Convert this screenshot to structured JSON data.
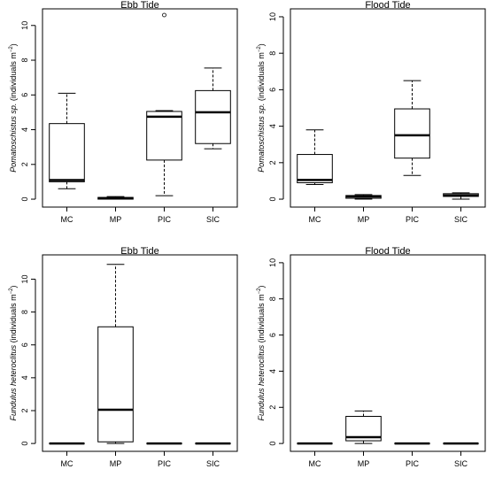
{
  "chart_data": [
    {
      "type": "boxplot",
      "title": "Ebb Tide",
      "ylabel": "Pomatoschistus sp. (individuals m⁻²)",
      "ylabel_italic": "Pomatoschistus sp.",
      "ylabel_rest": " (individuals m",
      "ylabel_exp": "−2",
      "ylabel_close": ")",
      "categories": [
        "MC",
        "MP",
        "PIC",
        "SIC"
      ],
      "ylim": [
        0,
        10.5
      ],
      "yticks": [
        "0",
        "2",
        "4",
        "6",
        "8",
        "10"
      ],
      "boxes": [
        {
          "min": 0.6,
          "q1": 1.0,
          "median": 1.1,
          "q3": 4.35,
          "max": 6.1,
          "outliers": []
        },
        {
          "min": 0.0,
          "q1": 0.0,
          "median": 0.05,
          "q3": 0.1,
          "max": 0.15,
          "outliers": []
        },
        {
          "min": 0.2,
          "q1": 2.25,
          "median": 4.75,
          "q3": 5.05,
          "max": 5.1,
          "outliers": [
            10.6
          ]
        },
        {
          "min": 2.9,
          "q1": 3.2,
          "median": 5.0,
          "q3": 6.25,
          "max": 7.55,
          "outliers": []
        }
      ]
    },
    {
      "type": "boxplot",
      "title": "Flood Tide",
      "ylabel": "Pomatoschistus sp. (individuals m⁻²)",
      "ylabel_italic": "Pomatoschistus sp.",
      "ylabel_rest": " (individuals m",
      "ylabel_exp": "−2",
      "ylabel_close": ")",
      "categories": [
        "MC",
        "MP",
        "PIC",
        "SIC"
      ],
      "ylim": [
        0,
        10
      ],
      "yticks": [
        "0",
        "2",
        "4",
        "6",
        "8",
        "10"
      ],
      "boxes": [
        {
          "min": 0.8,
          "q1": 0.9,
          "median": 1.05,
          "q3": 2.45,
          "max": 3.8,
          "outliers": []
        },
        {
          "min": 0.0,
          "q1": 0.05,
          "median": 0.15,
          "q3": 0.2,
          "max": 0.25,
          "outliers": []
        },
        {
          "min": 1.3,
          "q1": 2.25,
          "median": 3.5,
          "q3": 4.95,
          "max": 6.5,
          "outliers": []
        },
        {
          "min": 0.0,
          "q1": 0.15,
          "median": 0.2,
          "q3": 0.3,
          "max": 0.35,
          "outliers": []
        }
      ]
    },
    {
      "type": "boxplot",
      "title": "Ebb Tide",
      "ylabel": "Fundulus heteroclitus (individuals m⁻²)",
      "ylabel_italic": "Fundulus heteroclitus",
      "ylabel_rest": " (individuals m",
      "ylabel_exp": "−2",
      "ylabel_close": ")",
      "categories": [
        "MC",
        "MP",
        "PIC",
        "SIC"
      ],
      "ylim": [
        0,
        11
      ],
      "yticks": [
        "0",
        "2",
        "4",
        "6",
        "8",
        "10"
      ],
      "boxes": [
        {
          "min": 0,
          "q1": 0,
          "median": 0,
          "q3": 0,
          "max": 0,
          "outliers": []
        },
        {
          "min": 0.0,
          "q1": 0.1,
          "median": 2.05,
          "q3": 7.1,
          "max": 10.9,
          "outliers": []
        },
        {
          "min": 0,
          "q1": 0,
          "median": 0,
          "q3": 0,
          "max": 0,
          "outliers": []
        },
        {
          "min": 0,
          "q1": 0,
          "median": 0,
          "q3": 0,
          "max": 0,
          "outliers": []
        }
      ]
    },
    {
      "type": "boxplot",
      "title": "Flood Tide",
      "ylabel": "Fundulus heteroclitus (individuals m⁻²)",
      "ylabel_italic": "Fundulus heteroclitus",
      "ylabel_rest": " (individuals m",
      "ylabel_exp": "−2",
      "ylabel_close": ")",
      "categories": [
        "MC",
        "MP",
        "PIC",
        "SIC"
      ],
      "ylim": [
        0,
        10
      ],
      "yticks": [
        "0",
        "2",
        "4",
        "6",
        "8",
        "10"
      ],
      "boxes": [
        {
          "min": 0,
          "q1": 0,
          "median": 0,
          "q3": 0,
          "max": 0,
          "outliers": []
        },
        {
          "min": 0.0,
          "q1": 0.15,
          "median": 0.35,
          "q3": 1.5,
          "max": 1.8,
          "outliers": []
        },
        {
          "min": 0,
          "q1": 0,
          "median": 0,
          "q3": 0,
          "max": 0,
          "outliers": []
        },
        {
          "min": 0,
          "q1": 0,
          "median": 0,
          "q3": 0,
          "max": 0,
          "outliers": []
        }
      ]
    }
  ]
}
